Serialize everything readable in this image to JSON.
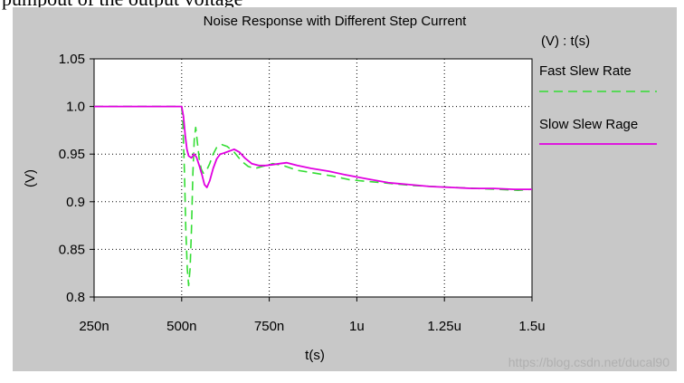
{
  "caption": {
    "text": "pumpout of the output voltage"
  },
  "watermark": {
    "text": "https://blog.csdn.net/ducal90"
  },
  "colors": {
    "panel_bg": "#c8c8c8",
    "plot_bg": "#ffffff",
    "grid": "#000000",
    "fast": "#33dd33",
    "slow": "#e000e0",
    "watermark": "#b0b0b0"
  },
  "chart_data": {
    "type": "line",
    "title": "Noise Response with Different Step Current",
    "xlabel": "t(s)",
    "ylabel": "(V)",
    "legend_title": "(V) : t(s)",
    "legend_position": "right",
    "grid": "dotted",
    "xlim": [
      250,
      1500
    ],
    "ylim": [
      0.8,
      1.05
    ],
    "x_ticks": [
      250,
      500,
      750,
      1000,
      1250,
      1500
    ],
    "x_tick_labels": [
      "250n",
      "500n",
      "750n",
      "1u",
      "1.25u",
      "1.5u"
    ],
    "y_ticks": [
      0.8,
      0.85,
      0.9,
      0.95,
      1.0,
      1.05
    ],
    "y_tick_labels": [
      "0.8",
      "0.85",
      "0.9",
      "0.95",
      "1.0",
      "1.05"
    ],
    "series": [
      {
        "name": "Fast Slew Rate",
        "line_style": "dashed",
        "color": "#33dd33",
        "x": [
          250,
          500,
          503,
          508,
          512,
          516,
          520,
          524,
          528,
          532,
          536,
          540,
          545,
          550,
          556,
          562,
          570,
          580,
          590,
          600,
          615,
          630,
          650,
          670,
          690,
          710,
          730,
          760,
          790,
          830,
          880,
          930,
          980,
          1040,
          1100,
          1160,
          1220,
          1280,
          1340,
          1400,
          1460,
          1500
        ],
        "y": [
          1.0,
          1.0,
          0.985,
          0.93,
          0.87,
          0.83,
          0.812,
          0.83,
          0.87,
          0.93,
          0.965,
          0.978,
          0.962,
          0.945,
          0.934,
          0.93,
          0.932,
          0.94,
          0.95,
          0.957,
          0.96,
          0.958,
          0.952,
          0.943,
          0.937,
          0.935,
          0.937,
          0.94,
          0.938,
          0.933,
          0.93,
          0.927,
          0.923,
          0.921,
          0.919,
          0.917,
          0.916,
          0.915,
          0.914,
          0.913,
          0.912,
          0.913
        ]
      },
      {
        "name": "Slow Slew Rage",
        "line_style": "solid",
        "color": "#e000e0",
        "x": [
          250,
          500,
          505,
          510,
          515,
          520,
          528,
          535,
          542,
          550,
          558,
          565,
          572,
          580,
          590,
          600,
          610,
          620,
          635,
          650,
          665,
          680,
          700,
          720,
          740,
          760,
          780,
          800,
          830,
          870,
          920,
          970,
          1030,
          1090,
          1150,
          1210,
          1270,
          1330,
          1390,
          1450,
          1500
        ],
        "y": [
          1.0,
          1.0,
          0.99,
          0.97,
          0.955,
          0.948,
          0.946,
          0.95,
          0.947,
          0.938,
          0.928,
          0.918,
          0.915,
          0.922,
          0.935,
          0.945,
          0.95,
          0.951,
          0.953,
          0.955,
          0.952,
          0.946,
          0.94,
          0.938,
          0.938,
          0.939,
          0.94,
          0.941,
          0.938,
          0.935,
          0.932,
          0.928,
          0.924,
          0.92,
          0.918,
          0.916,
          0.915,
          0.914,
          0.914,
          0.913,
          0.913
        ]
      }
    ]
  }
}
